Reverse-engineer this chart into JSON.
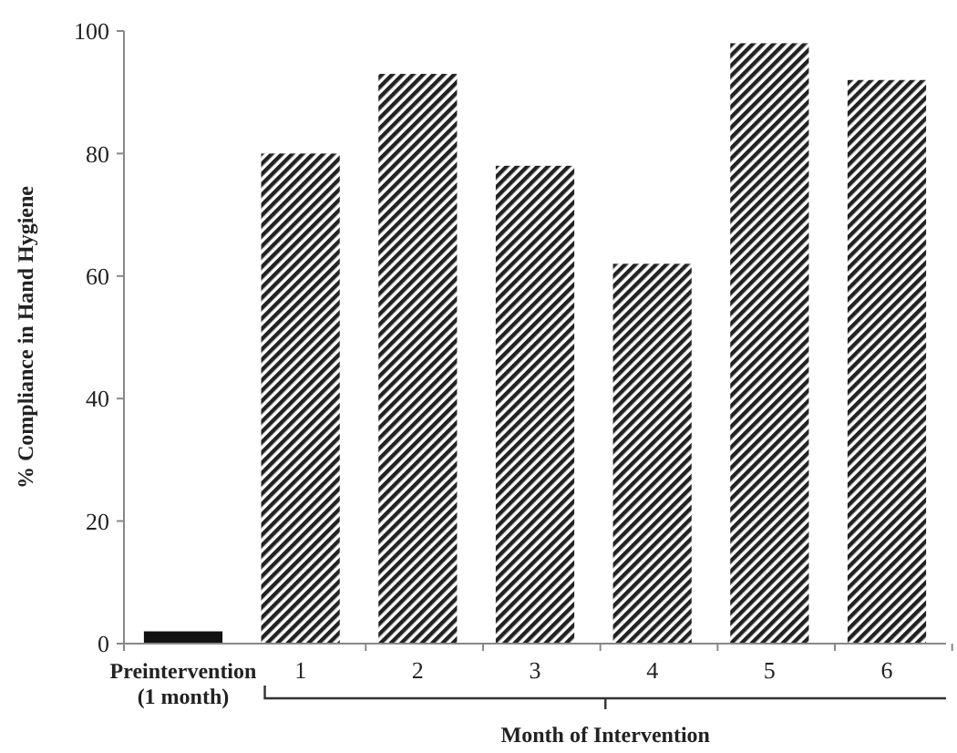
{
  "chart_data": {
    "type": "bar",
    "ylabel": "% Compliance in Hand Hygiene",
    "xlabel": "Month of Intervention",
    "categories": [
      "Preintervention (1 month)",
      "1",
      "2",
      "3",
      "4",
      "5",
      "6"
    ],
    "series": [
      {
        "color": "#111111",
        "values": [
          2,
          null,
          null,
          null,
          null,
          null,
          null
        ]
      },
      {
        "type": "bar",
        "color": "#222222",
        "values": [
          null,
          80,
          93,
          78,
          62,
          98,
          92
        ]
      }
    ],
    "ylim": [
      0,
      100
    ],
    "yticks": [
      0,
      20,
      40,
      60,
      80,
      100
    ],
    "grid": false
  }
}
